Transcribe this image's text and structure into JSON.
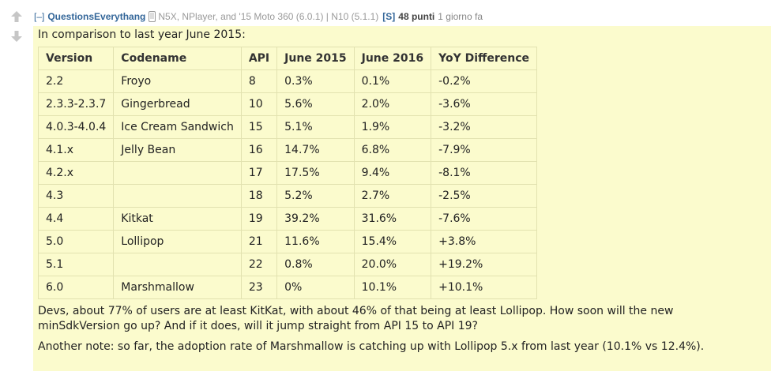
{
  "comment": {
    "expand_label": "[–]",
    "author": "QuestionsEverythang",
    "flair": "N5X, NPlayer, and '15 Moto 360 (6.0.1) | N10 (5.1.1)",
    "submitter_badge": "[S]",
    "score": "48 punti",
    "time": "1 giorno fa",
    "intro": "In comparison to last year June 2015:",
    "table": {
      "headers": [
        "Version",
        "Codename",
        "API",
        "June 2015",
        "June 2016",
        "YoY Difference"
      ],
      "rows": [
        [
          "2.2",
          "Froyo",
          "8",
          "0.3%",
          "0.1%",
          "-0.2%"
        ],
        [
          "2.3.3-2.3.7",
          "Gingerbread",
          "10",
          "5.6%",
          "2.0%",
          "-3.6%"
        ],
        [
          "4.0.3-4.0.4",
          "Ice Cream Sandwich",
          "15",
          "5.1%",
          "1.9%",
          "-3.2%"
        ],
        [
          "4.1.x",
          "Jelly Bean",
          "16",
          "14.7%",
          "6.8%",
          "-7.9%"
        ],
        [
          "4.2.x",
          "",
          "17",
          "17.5%",
          "9.4%",
          "-8.1%"
        ],
        [
          "4.3",
          "",
          "18",
          "5.2%",
          "2.7%",
          "-2.5%"
        ],
        [
          "4.4",
          "Kitkat",
          "19",
          "39.2%",
          "31.6%",
          "-7.6%"
        ],
        [
          "5.0",
          "Lollipop",
          "21",
          "11.6%",
          "15.4%",
          "+3.8%"
        ],
        [
          "5.1",
          "",
          "22",
          "0.8%",
          "20.0%",
          "+19.2%"
        ],
        [
          "6.0",
          "Marshmallow",
          "23",
          "0%",
          "10.1%",
          "+10.1%"
        ]
      ]
    },
    "paragraph2": "Devs, about 77% of users are at least KitKat, with about 46% of that being at least Lollipop. How soon will the new minSdkVersion go up? And if it does, will it jump straight from API 15 to API 19?",
    "paragraph3": "Another note: so far, the adoption rate of Marshmallow is catching up with Lollipop 5.x from last year (10.1% vs 12.4%)."
  },
  "icons": {
    "upvote": "upvote-arrow-icon",
    "downvote": "downvote-arrow-icon",
    "flair": "phone-icon"
  },
  "colors": {
    "link": "#336699",
    "body_bg": "#fbfbcd",
    "arrow": "#c6c6c6"
  }
}
